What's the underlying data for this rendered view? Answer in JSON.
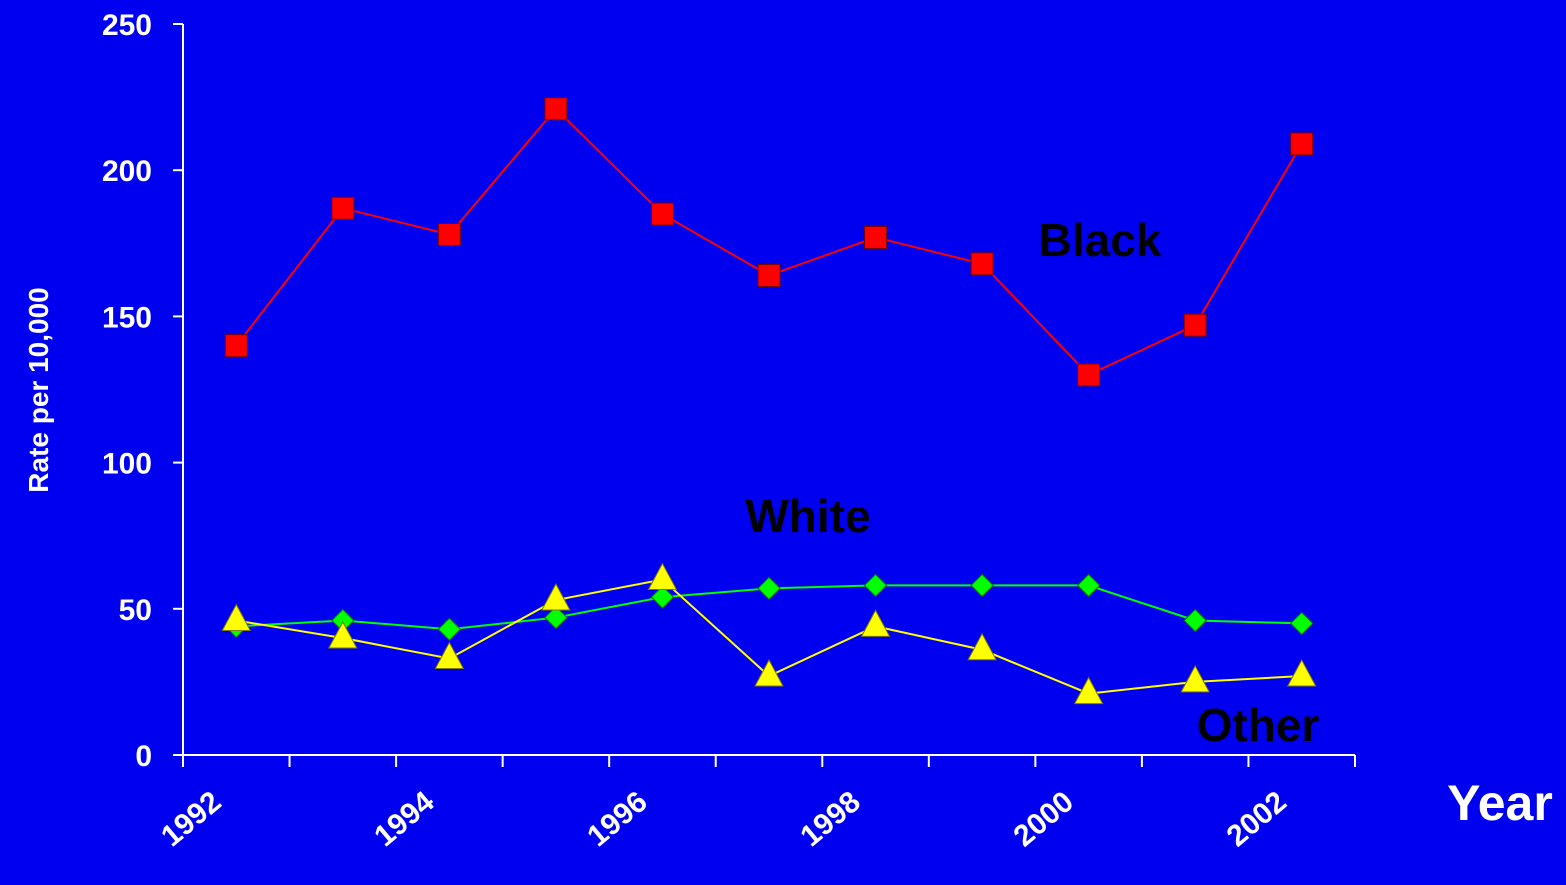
{
  "chart_data": {
    "type": "line",
    "title": "",
    "xlabel": "Year",
    "ylabel": "Rate per 10,000",
    "ylim": [
      0,
      250
    ],
    "yticks": [
      0,
      50,
      100,
      150,
      200,
      250
    ],
    "x": [
      1992,
      1993,
      1994,
      1995,
      1996,
      1997,
      1998,
      1999,
      2000,
      2001,
      2002
    ],
    "xtick_labels": [
      "1992",
      "1994",
      "1996",
      "1998",
      "2000",
      "2002"
    ],
    "grid": false,
    "legend": "none",
    "series": [
      {
        "name": "Black",
        "color": "#ff0000",
        "marker": "square",
        "values": [
          140,
          187,
          178,
          221,
          185,
          164,
          177,
          168,
          130,
          147,
          209
        ]
      },
      {
        "name": "White",
        "color": "#00ff00",
        "marker": "diamond",
        "values": [
          44,
          46,
          43,
          47,
          54,
          57,
          58,
          58,
          58,
          46,
          45
        ]
      },
      {
        "name": "Other",
        "color": "#ffff00",
        "marker": "triangle",
        "values": [
          46,
          40,
          33,
          53,
          60,
          27,
          44,
          36,
          21,
          25,
          27
        ]
      }
    ]
  }
}
